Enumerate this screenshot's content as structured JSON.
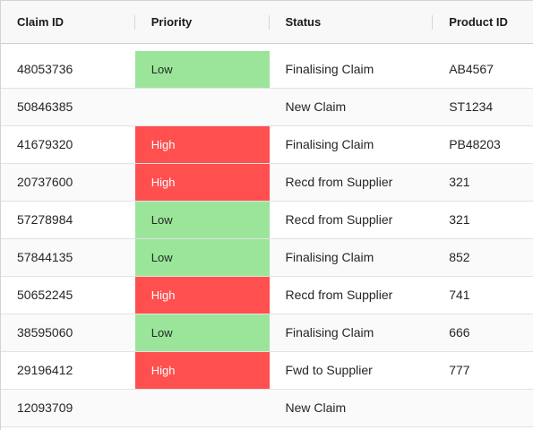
{
  "table": {
    "columns": {
      "claim_id": "Claim ID",
      "priority": "Priority",
      "status": "Status",
      "product_id": "Product ID"
    },
    "priority_colors": {
      "Low": "#9be59b",
      "High": "#ff4f4f"
    },
    "rows": [
      {
        "claim_id": "48053736",
        "priority": "Low",
        "status": "Finalising Claim",
        "product_id": "AB4567"
      },
      {
        "claim_id": "50846385",
        "priority": "",
        "status": "New Claim",
        "product_id": "ST1234"
      },
      {
        "claim_id": "41679320",
        "priority": "High",
        "status": "Finalising Claim",
        "product_id": "PB48203"
      },
      {
        "claim_id": "20737600",
        "priority": "High",
        "status": "Recd from Supplier",
        "product_id": "321"
      },
      {
        "claim_id": "57278984",
        "priority": "Low",
        "status": "Recd from Supplier",
        "product_id": "321"
      },
      {
        "claim_id": "57844135",
        "priority": "Low",
        "status": "Finalising Claim",
        "product_id": "852"
      },
      {
        "claim_id": "50652245",
        "priority": "High",
        "status": "Recd from Supplier",
        "product_id": "741"
      },
      {
        "claim_id": "38595060",
        "priority": "Low",
        "status": "Finalising Claim",
        "product_id": "666"
      },
      {
        "claim_id": "29196412",
        "priority": "High",
        "status": "Fwd to Supplier",
        "product_id": "777"
      },
      {
        "claim_id": "12093709",
        "priority": "",
        "status": "New Claim",
        "product_id": ""
      }
    ]
  }
}
